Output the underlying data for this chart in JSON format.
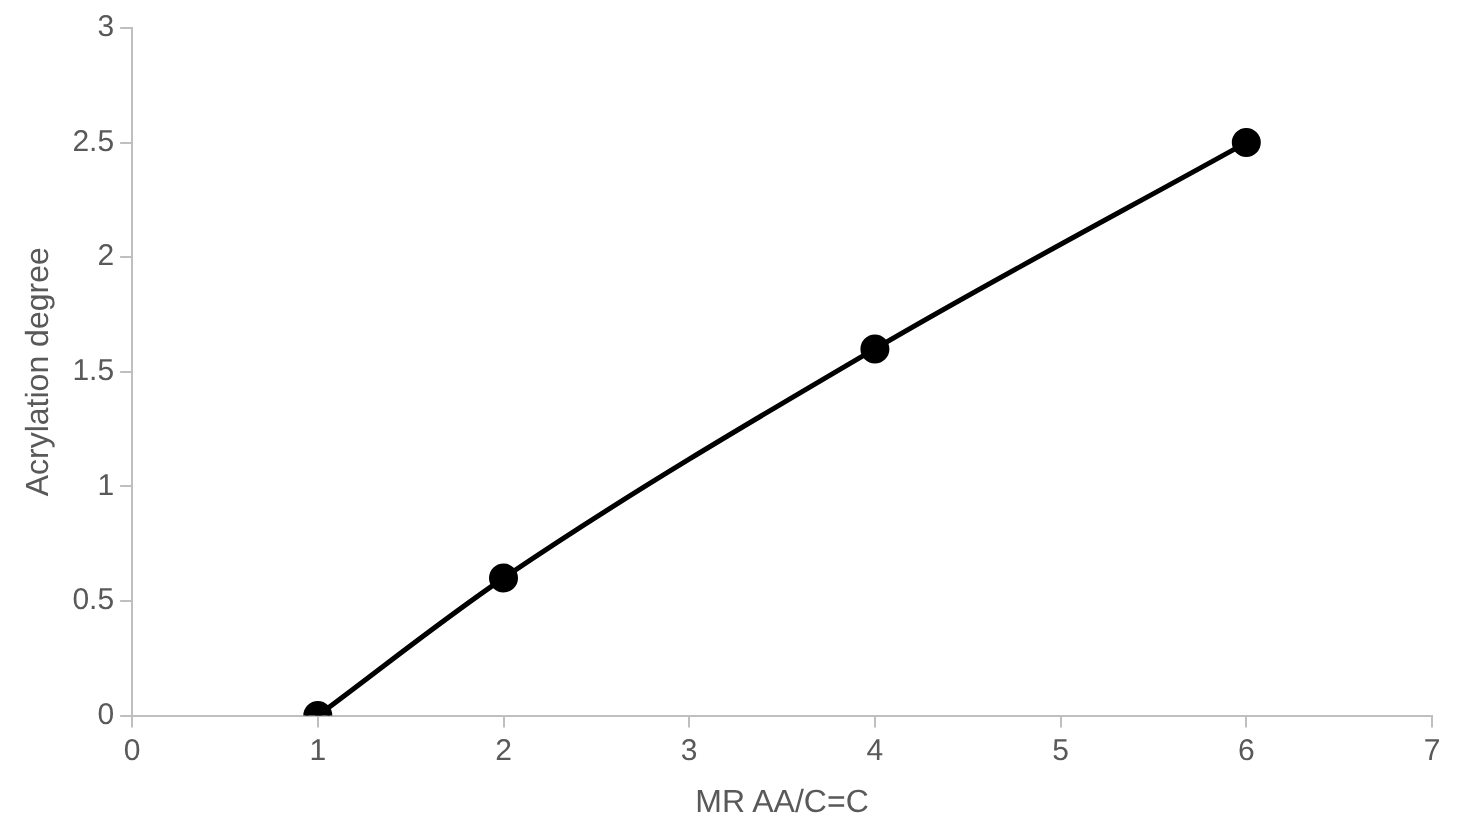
{
  "chart_data": {
    "type": "line",
    "xlabel": "MR AA/C=C",
    "ylabel": "Acrylation degree",
    "x": [
      1,
      2,
      4,
      6
    ],
    "series": [
      {
        "color": "#000000",
        "values": [
          0,
          0.6,
          1.6,
          2.5
        ]
      }
    ],
    "xlim": [
      0,
      7
    ],
    "xticks": [
      0,
      1,
      2,
      3,
      4,
      5,
      6,
      7
    ],
    "ylim": [
      0,
      3
    ],
    "yticks": [
      0,
      0.5,
      1,
      1.5,
      2,
      2.5,
      3
    ],
    "grid": false,
    "legend": false,
    "marker": "circle",
    "line_style": "solid"
  }
}
